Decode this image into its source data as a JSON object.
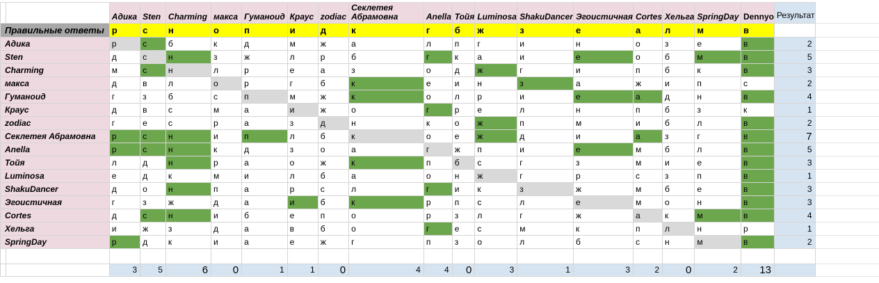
{
  "table": {
    "columns": [
      "Адика",
      "Sten",
      "Charming",
      "макса",
      "Гуманоид",
      "Краус",
      "zodiac",
      "Секлетея Абрамовна",
      "Anella",
      "Тойя",
      "Luminosa",
      "ShakuDancer",
      "Эгоистичная",
      "Cortes",
      "Хельга",
      "SpringDay",
      "Dennyo"
    ],
    "result_header": "Результат",
    "answers_label": "Правильные ответы",
    "answers": [
      "р",
      "с",
      "н",
      "о",
      "п",
      "и",
      "д",
      "к",
      "г",
      "б",
      "ж",
      "з",
      "е",
      "а",
      "л",
      "м",
      "в"
    ],
    "rows": [
      {
        "name": "Адика",
        "cells": [
          "р",
          "с",
          "б",
          "к",
          "д",
          "м",
          "ж",
          "а",
          "л",
          "п",
          "г",
          "и",
          "н",
          "о",
          "з",
          "е",
          "в"
        ],
        "result": 2
      },
      {
        "name": "Sten",
        "cells": [
          "д",
          "с",
          "н",
          "з",
          "ж",
          "л",
          "р",
          "б",
          "г",
          "к",
          "а",
          "и",
          "е",
          "о",
          "б",
          "м",
          "в"
        ],
        "result": 5
      },
      {
        "name": "Charming",
        "cells": [
          "м",
          "с",
          "н",
          "л",
          "р",
          "е",
          "а",
          "з",
          "о",
          "д",
          "ж",
          "г",
          "и",
          "п",
          "б",
          "к",
          "в"
        ],
        "result": 3
      },
      {
        "name": "макса",
        "cells": [
          "д",
          "в",
          "л",
          "о",
          "р",
          "г",
          "б",
          "к",
          "е",
          "и",
          "н",
          "з",
          "а",
          "ж",
          "и",
          "п",
          "с"
        ],
        "result": 2
      },
      {
        "name": "Гуманоид",
        "cells": [
          "г",
          "з",
          "б",
          "с",
          "п",
          "м",
          "ж",
          "к",
          "о",
          "л",
          "р",
          "и",
          "е",
          "а",
          "д",
          "н",
          "в"
        ],
        "result": 4
      },
      {
        "name": "Краус",
        "cells": [
          "д",
          "в",
          "с",
          "м",
          "а",
          "и",
          "ж",
          "о",
          "г",
          "р",
          "е",
          "л",
          "н",
          "п",
          "б",
          "з",
          "к"
        ],
        "result": 1
      },
      {
        "name": "zodiac",
        "cells": [
          "г",
          "е",
          "с",
          "р",
          "а",
          "з",
          "д",
          "н",
          "к",
          "о",
          "ж",
          "п",
          "м",
          "и",
          "б",
          "л",
          "в"
        ],
        "result": 2
      },
      {
        "name": "Секлетея Абрамовна",
        "cells": [
          "р",
          "с",
          "н",
          "и",
          "п",
          "л",
          "б",
          "к",
          "о",
          "е",
          "ж",
          "д",
          "и",
          "а",
          "з",
          "г",
          "в"
        ],
        "result": 7,
        "result_large": true
      },
      {
        "name": "Anella",
        "cells": [
          "р",
          "с",
          "н",
          "к",
          "д",
          "з",
          "о",
          "а",
          "г",
          "ж",
          "п",
          "и",
          "е",
          "м",
          "б",
          "л",
          "в"
        ],
        "result": 5
      },
      {
        "name": "Тойя",
        "cells": [
          "л",
          "д",
          "н",
          "р",
          "а",
          "о",
          "ж",
          "к",
          "п",
          "б",
          "с",
          "г",
          "з",
          "м",
          "и",
          "е",
          "в"
        ],
        "result": 3
      },
      {
        "name": "Luminosa",
        "cells": [
          "е",
          "д",
          "к",
          "м",
          "и",
          "л",
          "б",
          "а",
          "о",
          "н",
          "ж",
          "г",
          "р",
          "с",
          "з",
          "п",
          "в"
        ],
        "result": 1
      },
      {
        "name": "ShakuDancer",
        "cells": [
          "д",
          "о",
          "н",
          "п",
          "а",
          "р",
          "с",
          "л",
          "г",
          "и",
          "к",
          "з",
          "ж",
          "м",
          "б",
          "е",
          "в"
        ],
        "result": 3
      },
      {
        "name": "Эгоистичная",
        "cells": [
          "г",
          "з",
          "ж",
          "д",
          "а",
          "и",
          "б",
          "к",
          "р",
          "п",
          "с",
          "л",
          "е",
          "м",
          "о",
          "н",
          "в"
        ],
        "result": 3
      },
      {
        "name": "Cortes",
        "cells": [
          "д",
          "с",
          "н",
          "и",
          "б",
          "е",
          "п",
          "о",
          "р",
          "з",
          "л",
          "г",
          "ж",
          "а",
          "к",
          "м",
          "в"
        ],
        "result": 4
      },
      {
        "name": "Хельга",
        "cells": [
          "и",
          "ж",
          "з",
          "д",
          "а",
          "в",
          "б",
          "о",
          "г",
          "е",
          "с",
          "м",
          "к",
          "п",
          "л",
          "н",
          "р"
        ],
        "result": 1
      },
      {
        "name": "SpringDay",
        "cells": [
          "р",
          "д",
          "к",
          "и",
          "а",
          "е",
          "ж",
          "г",
          "п",
          "з",
          "о",
          "л",
          "б",
          "с",
          "н",
          "м",
          "в"
        ],
        "result": 2
      }
    ],
    "totals": [
      3,
      5,
      6,
      0,
      1,
      1,
      0,
      4,
      4,
      0,
      3,
      1,
      3,
      2,
      0,
      2,
      13
    ],
    "totals_large_indices": [
      2,
      3,
      6,
      9,
      14,
      16
    ],
    "colors": {
      "correct_green": "#6ca64d",
      "self_diagonal_gray": "#d9d9d9",
      "header_pink": "#efd9e1",
      "answers_yellow": "#ffff00",
      "answers_label_gray": "#a8a8a8",
      "result_blue": "#d6e4f2"
    }
  }
}
